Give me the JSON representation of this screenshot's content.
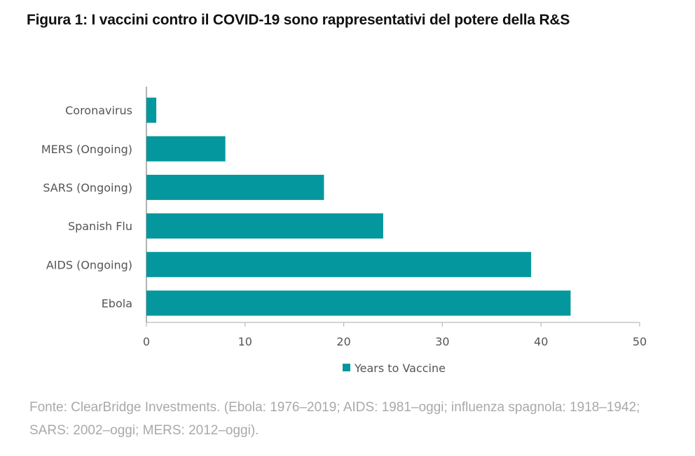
{
  "title": "Figura 1: I vaccini contro il COVID-19 sono rappresentativi del potere della R&S",
  "source": "Fonte: ClearBridge Investments. (Ebola: 1976–2019; AIDS: 1981–oggi; influenza spagnola: 1918–1942; SARS: 2002–oggi; MERS: 2012–oggi).",
  "colors": {
    "bar": "#05979e",
    "axis": "#999999"
  },
  "chart_data": {
    "type": "bar",
    "orientation": "horizontal",
    "title": "Figura 1: I vaccini contro il COVID-19 sono rappresentativi del potere della R&S",
    "categories": [
      "Coronavirus",
      "MERS (Ongoing)",
      "SARS (Ongoing)",
      "Spanish Flu",
      "AIDS (Ongoing)",
      "Ebola"
    ],
    "series": [
      {
        "name": "Years to Vaccine",
        "values": [
          1,
          8,
          18,
          24,
          39,
          43
        ]
      }
    ],
    "xlim": [
      0,
      50
    ],
    "xticks": [
      "0",
      "10",
      "20",
      "30",
      "40",
      "50"
    ],
    "xlabel": "",
    "ylabel": "",
    "grid": false,
    "legend": "bottom-center"
  }
}
